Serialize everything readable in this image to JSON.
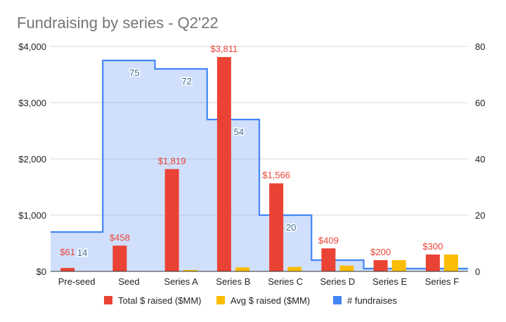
{
  "chart_data": {
    "type": "bar",
    "title": "Fundraising by series - Q2'22",
    "categories": [
      "Pre-seed",
      "Seed",
      "Series A",
      "Series B",
      "Series C",
      "Series D",
      "Series E",
      "Series F"
    ],
    "series": [
      {
        "name": "Total $ raised ($MM)",
        "type": "bar",
        "axis": "left",
        "color": "#ea4335",
        "values": [
          61,
          458,
          1819,
          3811,
          1566,
          409,
          200,
          300
        ],
        "labels": [
          "$61",
          "$458",
          "$1,819",
          "$3,811",
          "$1,566",
          "$409",
          "$200",
          "$300"
        ]
      },
      {
        "name": "Avg $ raised ($MM)",
        "type": "bar",
        "axis": "left",
        "color": "#fbbc04",
        "values": [
          4,
          6,
          25,
          71,
          78,
          102,
          200,
          300
        ]
      },
      {
        "name": "# fundraises",
        "type": "stepped-area",
        "axis": "right",
        "color": "#4285f4",
        "values": [
          14,
          75,
          72,
          54,
          20,
          4,
          1,
          1
        ],
        "labels": [
          "14",
          "75",
          "72",
          "54",
          "20",
          "",
          "",
          ""
        ]
      }
    ],
    "y_left": {
      "min": 0,
      "max": 4000,
      "ticks": [
        0,
        1000,
        2000,
        3000,
        4000
      ],
      "tick_labels": [
        "$0",
        "$1,000",
        "$2,000",
        "$3,000",
        "$4,000"
      ]
    },
    "y_right": {
      "min": 0,
      "max": 80,
      "ticks": [
        0,
        20,
        40,
        60,
        80
      ],
      "tick_labels": [
        "0",
        "20",
        "40",
        "60",
        "80"
      ]
    },
    "grid": true,
    "legend": "bottom"
  }
}
